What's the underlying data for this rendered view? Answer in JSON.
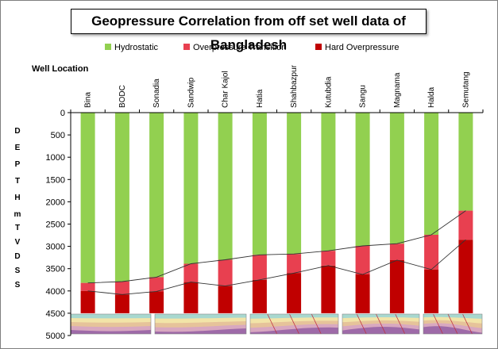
{
  "chart_data": {
    "type": "bar",
    "stacked": true,
    "title": "Geopressure Correlation from off set well data of Bangladesh",
    "category_axis_title": "Well Location",
    "y_axis_title_line1": "DEPTHm",
    "y_axis_title_line2": "TVDSS",
    "ylim": [
      0,
      5000
    ],
    "y_inverted": true,
    "y_ticks": [
      0,
      500,
      1000,
      1500,
      2000,
      2500,
      3000,
      3500,
      4000,
      4500,
      5000
    ],
    "categories": [
      "Bina",
      "BODC",
      "Sonadia",
      "Sandwip",
      "Char Kajol",
      "Hatia",
      "Shahbazpur",
      "Kutubdia",
      "Sangu",
      "Magnama",
      "Halda",
      "Semutang"
    ],
    "series": [
      {
        "name": "Hydrostatic",
        "color": "#92d050",
        "values": [
          3820,
          3790,
          3690,
          3390,
          3300,
          3190,
          3170,
          3100,
          2990,
          2940,
          2740,
          2200
        ]
      },
      {
        "name": "Overpressure Transition",
        "color": "#e84050",
        "values": [
          180,
          290,
          320,
          410,
          590,
          560,
          430,
          330,
          640,
          370,
          780,
          650
        ]
      },
      {
        "name": "Hard Overpressure",
        "color": "#c00000",
        "values": [
          500,
          420,
          490,
          700,
          610,
          750,
          900,
          1070,
          870,
          1190,
          980,
          1650
        ]
      }
    ],
    "bar_bottom": 4500,
    "legend_position": "top",
    "grid": false
  }
}
